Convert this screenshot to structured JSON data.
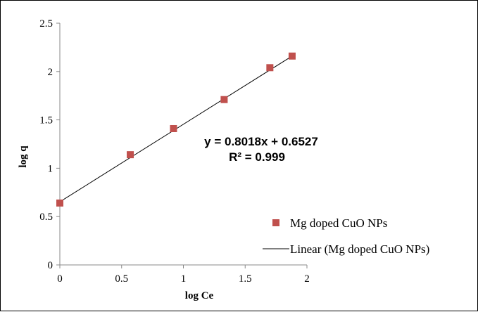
{
  "chart_data": {
    "type": "scatter",
    "xlabel": "log Ce",
    "ylabel": "log q",
    "xlim": [
      0,
      2
    ],
    "ylim": [
      0,
      2.5
    ],
    "x_ticks": [
      "0",
      "0.5",
      "1",
      "1.5",
      "2"
    ],
    "y_ticks": [
      "0",
      "0.5",
      "1",
      "1.5",
      "2",
      "2.5"
    ],
    "grid": false,
    "legend_position": "bottom-right",
    "series": [
      {
        "name": "Mg doped CuO NPs",
        "marker": "square",
        "color": "#c0504d",
        "x": [
          0.0,
          0.57,
          0.92,
          1.33,
          1.7,
          1.88
        ],
        "y": [
          0.64,
          1.14,
          1.41,
          1.71,
          2.04,
          2.16
        ]
      }
    ],
    "trendline": {
      "name": "Linear (Mg doped CuO NPs)",
      "slope": 0.8018,
      "intercept": 0.6527,
      "x_range": [
        0,
        1.88
      ],
      "color": "#000000"
    },
    "annotations": {
      "equation": "y = 0.8018x + 0.6527",
      "r_squared": "R² = 0.999"
    }
  }
}
